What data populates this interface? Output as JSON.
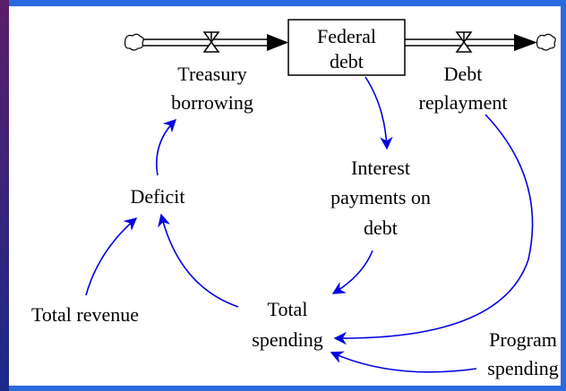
{
  "diagram": {
    "stock": {
      "label": [
        "Federal",
        "debt"
      ]
    },
    "flows": [
      {
        "label": [
          "Treasury",
          "borrowing"
        ]
      },
      {
        "label": [
          "Debt",
          "replayment"
        ]
      }
    ],
    "variables": [
      {
        "label": [
          "Interest",
          "payments on",
          "debt"
        ]
      },
      {
        "label": [
          "Deficit"
        ]
      },
      {
        "label": [
          "Total revenue"
        ]
      },
      {
        "label": [
          "Total",
          "spending"
        ]
      },
      {
        "label": [
          "Program",
          "spending"
        ]
      }
    ]
  }
}
